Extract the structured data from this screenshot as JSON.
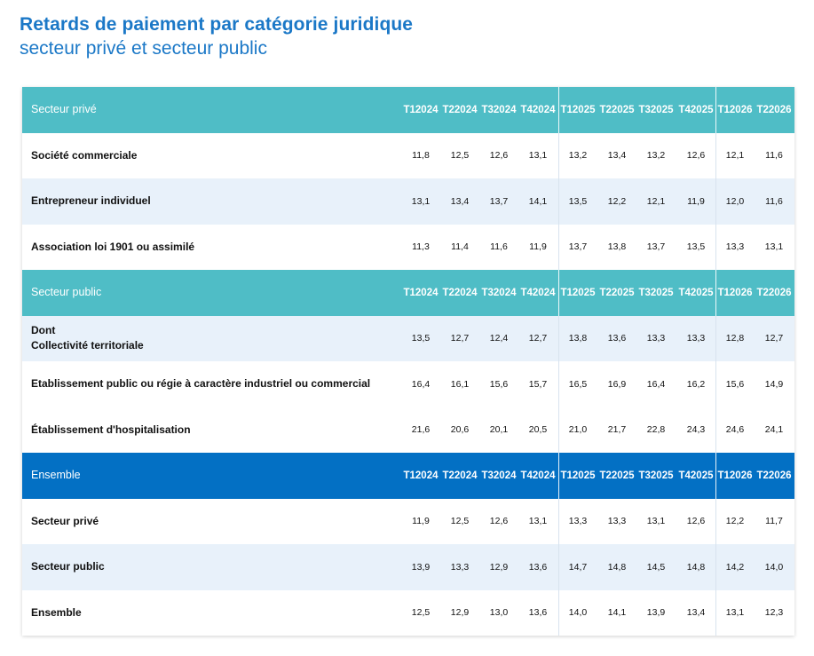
{
  "title": "Retards de paiement par catégorie juridique",
  "subtitle": "secteur privé et secteur public",
  "columns": [
    {
      "q": "T1",
      "y": "2024"
    },
    {
      "q": "T2",
      "y": "2024"
    },
    {
      "q": "T3",
      "y": "2024"
    },
    {
      "q": "T4",
      "y": "2024"
    },
    {
      "q": "T1",
      "y": "2025"
    },
    {
      "q": "T2",
      "y": "2025"
    },
    {
      "q": "T3",
      "y": "2025"
    },
    {
      "q": "T4",
      "y": "2025"
    },
    {
      "q": "T1",
      "y": "2026"
    },
    {
      "q": "T2",
      "y": "2026"
    }
  ],
  "sections": [
    {
      "name": "Secteur privé",
      "color": "#4fbdc6",
      "rows": [
        {
          "label": "Société commerciale",
          "values": [
            "11,8",
            "12,5",
            "12,6",
            "13,1",
            "13,2",
            "13,4",
            "13,2",
            "12,6",
            "12,1",
            "11,6"
          ]
        },
        {
          "label": "Entrepreneur individuel",
          "values": [
            "13,1",
            "13,4",
            "13,7",
            "14,1",
            "13,5",
            "12,2",
            "12,1",
            "11,9",
            "12,0",
            "11,6"
          ]
        },
        {
          "label": "Association loi 1901 ou assimilé",
          "values": [
            "11,3",
            "11,4",
            "11,6",
            "11,9",
            "13,7",
            "13,8",
            "13,7",
            "13,5",
            "13,3",
            "13,1"
          ]
        }
      ]
    },
    {
      "name": "Secteur public",
      "color": "#4fbdc6",
      "rows": [
        {
          "label": "Dont\nCollectivité territoriale",
          "values": [
            "13,5",
            "12,7",
            "12,4",
            "12,7",
            "13,8",
            "13,6",
            "13,3",
            "13,3",
            "12,8",
            "12,7"
          ]
        },
        {
          "label": "Etablissement public ou régie à caractère industriel ou commercial",
          "values": [
            "16,4",
            "16,1",
            "15,6",
            "15,7",
            "16,5",
            "16,9",
            "16,4",
            "16,2",
            "15,6",
            "14,9"
          ]
        },
        {
          "label": "Établissement d'hospitalisation",
          "values": [
            "21,6",
            "20,6",
            "20,1",
            "20,5",
            "21,0",
            "21,7",
            "22,8",
            "24,3",
            "24,6",
            "24,1"
          ]
        }
      ]
    },
    {
      "name": "Ensemble",
      "color": "#0370c4",
      "rows": [
        {
          "label": "Secteur privé",
          "values": [
            "11,9",
            "12,5",
            "12,6",
            "13,1",
            "13,3",
            "13,3",
            "13,1",
            "12,6",
            "12,2",
            "11,7"
          ]
        },
        {
          "label": "Secteur public",
          "values": [
            "13,9",
            "13,3",
            "12,9",
            "13,6",
            "14,7",
            "14,8",
            "14,5",
            "14,8",
            "14,2",
            "14,0"
          ]
        },
        {
          "label": "Ensemble",
          "values": [
            "12,5",
            "12,9",
            "13,0",
            "13,6",
            "14,0",
            "14,1",
            "13,9",
            "13,4",
            "13,1",
            "12,3"
          ]
        }
      ]
    }
  ]
}
